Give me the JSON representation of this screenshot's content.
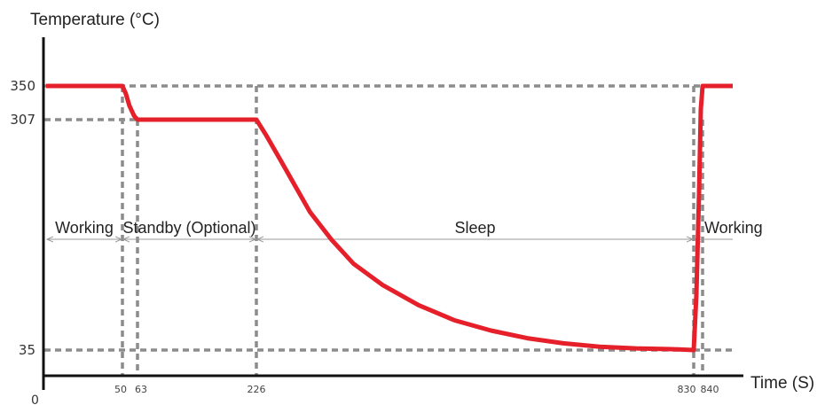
{
  "chart_data": {
    "type": "line",
    "xlabel": "Time (S)",
    "ylabel": "Temperature (°C)",
    "origin_label": "0",
    "y_ticks": [
      "350",
      "307",
      "35"
    ],
    "x_ticks": [
      "50",
      "63",
      "226",
      "830",
      "840"
    ],
    "series": [
      {
        "color": "#e5202a",
        "x": [
          0,
          50,
          53,
          56,
          60,
          63,
          226,
          240,
          260,
          280,
          300,
          330,
          360,
          400,
          450,
          500,
          550,
          600,
          650,
          700,
          750,
          800,
          830,
          833,
          836,
          838,
          840,
          900
        ],
        "y": [
          350,
          350,
          340,
          325,
          312,
          307,
          307,
          288,
          258,
          228,
          198,
          165,
          137,
          112,
          88,
          70,
          58,
          49,
          43,
          39,
          37,
          36,
          35,
          100,
          220,
          320,
          350,
          350
        ]
      }
    ],
    "phases": [
      {
        "label": "Working",
        "from": 0,
        "to": 50
      },
      {
        "label": "Standby (Optional)",
        "from": 50,
        "to": 226
      },
      {
        "label": "Sleep",
        "from": 226,
        "to": 830
      },
      {
        "label": "Working",
        "from": 830,
        "to": 900
      }
    ],
    "xlim": [
      0,
      900
    ],
    "ylim": [
      0,
      350
    ],
    "grid": "dashed reference lines at key times and temperatures"
  }
}
